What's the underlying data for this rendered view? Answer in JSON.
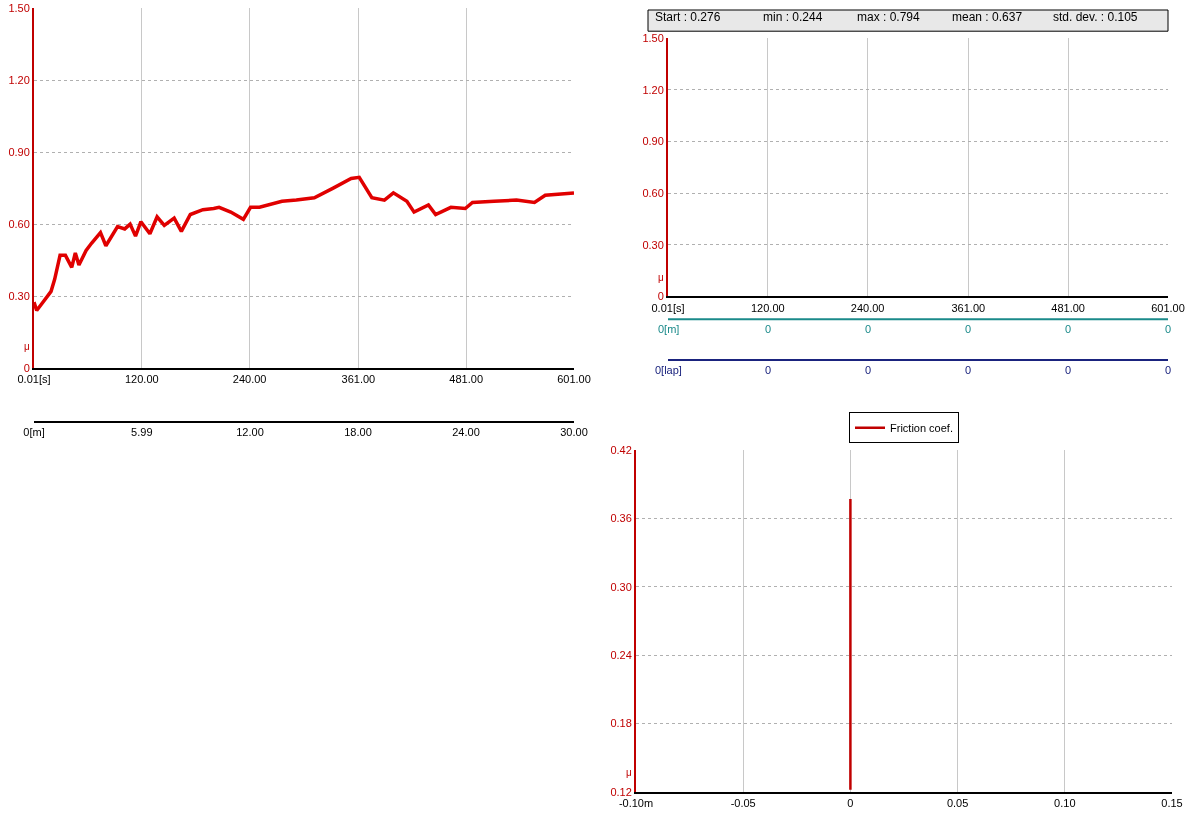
{
  "chart_data": [
    {
      "type": "line",
      "ylabel": "μ",
      "grid": true,
      "x": [
        0.01,
        3,
        11,
        19,
        23,
        29,
        35,
        42,
        46,
        50,
        58,
        64,
        74,
        80,
        93,
        101,
        107,
        113,
        119,
        129,
        137,
        145,
        156,
        164,
        174,
        188,
        200,
        206,
        219,
        233,
        241,
        251,
        276,
        292,
        312,
        333,
        353,
        362,
        376,
        390,
        400,
        415,
        423,
        439,
        447,
        464,
        480,
        488,
        512,
        537,
        557,
        569,
        601
      ],
      "values": [
        0.275,
        0.24,
        0.28,
        0.32,
        0.37,
        0.47,
        0.47,
        0.42,
        0.48,
        0.43,
        0.49,
        0.52,
        0.565,
        0.51,
        0.59,
        0.58,
        0.6,
        0.55,
        0.61,
        0.56,
        0.63,
        0.595,
        0.625,
        0.57,
        0.64,
        0.66,
        0.665,
        0.67,
        0.65,
        0.62,
        0.67,
        0.67,
        0.695,
        0.7,
        0.71,
        0.75,
        0.79,
        0.795,
        0.71,
        0.7,
        0.73,
        0.695,
        0.65,
        0.68,
        0.64,
        0.67,
        0.665,
        0.69,
        0.695,
        0.7,
        0.69,
        0.72,
        0.73
      ],
      "color": "#e00000",
      "xlim": [
        0.01,
        601
      ],
      "xticks": [
        {
          "value": 0.01,
          "label": "0.01[s]"
        },
        {
          "value": 120,
          "label": "120.00"
        },
        {
          "value": 240,
          "label": "240.00"
        },
        {
          "value": 361,
          "label": "361.00"
        },
        {
          "value": 481,
          "label": "481.00"
        },
        {
          "value": 601,
          "label": "601.00"
        }
      ],
      "x2lim": [
        0,
        30
      ],
      "x2ticks": [
        {
          "value": 0,
          "label": "0[m]"
        },
        5.99,
        {
          "value": 12,
          "label": "12.00"
        },
        {
          "value": 18,
          "label": "18.00"
        },
        {
          "value": 24,
          "label": "24.00"
        },
        {
          "value": 30,
          "label": "30.00"
        }
      ],
      "ylim": [
        0,
        1.5
      ],
      "yticks": [
        0,
        {
          "value": 0.3,
          "label": "0.30"
        },
        {
          "value": 0.6,
          "label": "0.60"
        },
        {
          "value": 0.9,
          "label": "0.90"
        },
        {
          "value": 1.2,
          "label": "1.20"
        },
        {
          "value": 1.5,
          "label": "1.50"
        }
      ]
    },
    {
      "type": "line",
      "ylabel": "μ",
      "grid": true,
      "annotations": [
        "Start : 0.276",
        "min : 0.244",
        "max : 0.794",
        "mean : 0.637",
        "std. dev. : 0.105",
        "0[m]",
        "0",
        "0",
        "0",
        "0",
        "0",
        "0[lap]",
        "0",
        "0",
        "0",
        "0",
        "0"
      ],
      "xlim": [
        0.01,
        601
      ],
      "xticks": [
        {
          "value": 0.01,
          "label": "0.01[s]"
        },
        {
          "value": 120,
          "label": "120.00"
        },
        {
          "value": 240,
          "label": "240.00"
        },
        {
          "value": 361,
          "label": "361.00"
        },
        {
          "value": 481,
          "label": "481.00"
        },
        {
          "value": 601,
          "label": "601.00"
        }
      ],
      "ylim": [
        0,
        1.5
      ],
      "yticks": [
        0,
        {
          "value": 0.3,
          "label": "0.30"
        },
        {
          "value": 0.6,
          "label": "0.60"
        },
        {
          "value": 0.9,
          "label": "0.90"
        },
        {
          "value": 1.2,
          "label": "1.20"
        },
        {
          "value": 1.5,
          "label": "1.50"
        }
      ]
    },
    {
      "type": "line",
      "ylabel": "μ",
      "grid": true,
      "legend": "top",
      "series": [
        {
          "name": "Friction coef.",
          "color": "#c00000",
          "x": [
            0,
            0
          ],
          "values": [
            0.122,
            0.377
          ]
        }
      ],
      "xlim": [
        -0.1,
        0.15
      ],
      "xticks": [
        {
          "value": -0.1,
          "label": "-0.10m"
        },
        -0.05,
        0,
        0.05,
        {
          "value": 0.1,
          "label": "0.10"
        },
        0.15
      ],
      "ylim": [
        0.12,
        0.42
      ],
      "yticks": [
        0.12,
        0.18,
        {
          "value": 0.3,
          "label": "0.30"
        },
        0.24,
        0.36,
        0.42
      ]
    }
  ]
}
